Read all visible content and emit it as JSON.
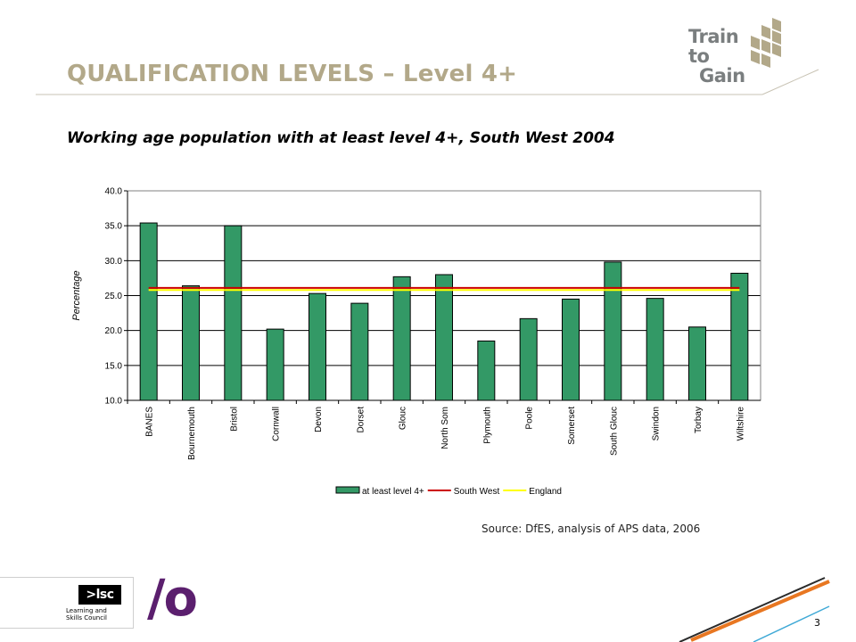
{
  "header": {
    "title": "QUALIFICATION LEVELS – Level 4+",
    "brand_line1": "Train to",
    "brand_line2": "Gain"
  },
  "subtitle": "Working age population with at least level 4+, South West 2004",
  "source": "Source: DfES, analysis of APS data, 2006",
  "page_number": "3",
  "footer": {
    "lsc_mark": ">lsc",
    "lsc_caption": "Learning and Skills Council",
    "logo_text": "/o"
  },
  "colors": {
    "title": "#b2a889",
    "bar": "#339966",
    "south_west_line": "#cc0000",
    "england_line": "#ffff00",
    "accent_purple": "#5b1f6e",
    "accent_orange": "#e87722"
  },
  "chart_data": {
    "type": "bar",
    "title": "",
    "xlabel": "",
    "ylabel": "Percentage",
    "ylim": [
      10,
      40
    ],
    "yticks": [
      "10.0",
      "15.0",
      "20.0",
      "25.0",
      "30.0",
      "35.0",
      "40.0"
    ],
    "grid": true,
    "legend_position": "bottom",
    "categories": [
      "BANES",
      "Bournemouth",
      "Bristol",
      "Cornwall",
      "Devon",
      "Dorset",
      "Glouc",
      "North Som",
      "Plymouth",
      "Poole",
      "Somerset",
      "South Glouc",
      "Swindon",
      "Torbay",
      "Wiltshire"
    ],
    "series": [
      {
        "name": "at least level 4+",
        "kind": "bar",
        "values": [
          35.4,
          26.4,
          35.0,
          20.2,
          25.3,
          23.9,
          27.7,
          28.0,
          18.5,
          21.7,
          24.5,
          29.8,
          24.6,
          20.5,
          28.2
        ]
      },
      {
        "name": "South West",
        "kind": "line",
        "value": 26.1
      },
      {
        "name": "England",
        "kind": "line",
        "value": 25.8
      }
    ]
  }
}
